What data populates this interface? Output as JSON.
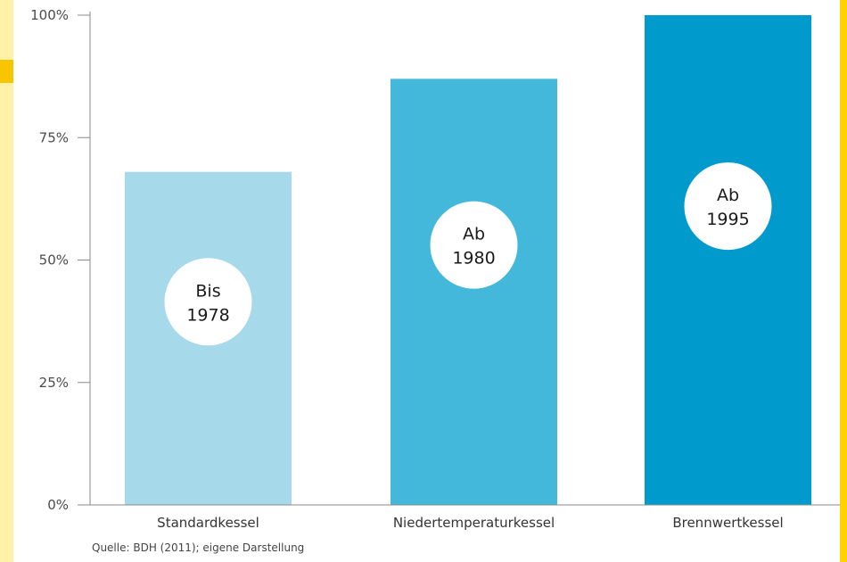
{
  "chart_data": {
    "type": "bar",
    "categories": [
      "Standardkessel",
      "Niedertemperaturkessel",
      "Brennwertkessel"
    ],
    "values": [
      68,
      87,
      100
    ],
    "bar_colors": [
      "#a6d9ea",
      "#43b8db",
      "#009bcc"
    ],
    "annotations": [
      [
        "Bis",
        "1978"
      ],
      [
        "Ab",
        "1980"
      ],
      [
        "Ab",
        "1995"
      ]
    ],
    "y_ticks": [
      "0%",
      "25%",
      "50%",
      "75%",
      "100%"
    ],
    "ylim": [
      0,
      100
    ],
    "grid": false
  },
  "source": "Quelle: BDH (2011); eigene Darstellung",
  "colors": {
    "left_strip": "#fff1a8",
    "left_tab": "#f8c600",
    "right_strip": "#ffd200",
    "axis": "#8a8a8a",
    "bubble": "#ffffff"
  }
}
